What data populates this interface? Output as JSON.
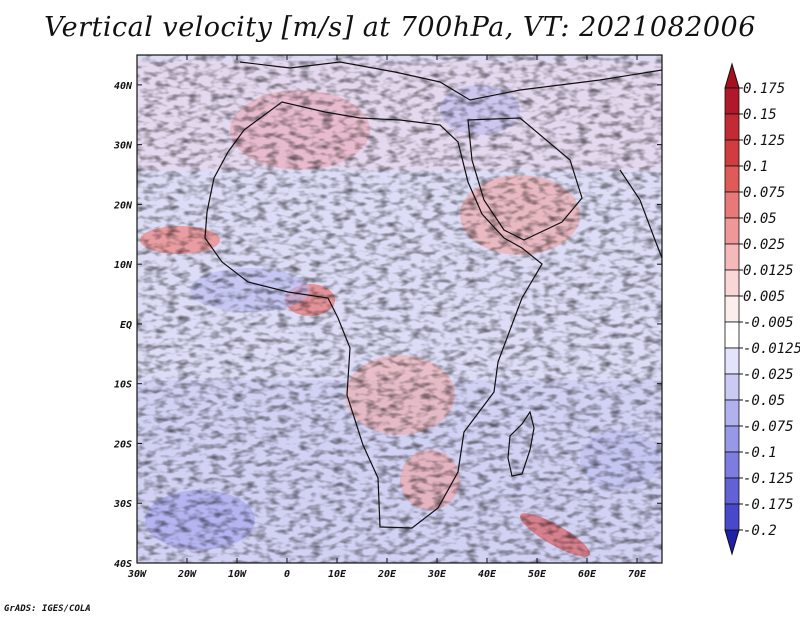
{
  "title": "Vertical velocity [m/s] at 700hPa, VT: 2021082006",
  "credit": "GrADS: IGES/COLA",
  "map": {
    "variable": "Vertical velocity",
    "units": "m/s",
    "level": "700hPa",
    "valid_time": "2021082006",
    "lon_range": [
      -30,
      75
    ],
    "lat_range": [
      -40,
      45
    ],
    "lat_ticks": [
      {
        "value": 40,
        "label": "40N"
      },
      {
        "value": 30,
        "label": "30N"
      },
      {
        "value": 20,
        "label": "20N"
      },
      {
        "value": 10,
        "label": "10N"
      },
      {
        "value": 0,
        "label": "EQ"
      },
      {
        "value": -10,
        "label": "10S"
      },
      {
        "value": -20,
        "label": "20S"
      },
      {
        "value": -30,
        "label": "30S"
      },
      {
        "value": -40,
        "label": "40S"
      }
    ],
    "lon_ticks": [
      {
        "value": -30,
        "label": "30W"
      },
      {
        "value": -20,
        "label": "20W"
      },
      {
        "value": -10,
        "label": "10W"
      },
      {
        "value": 0,
        "label": "0"
      },
      {
        "value": 10,
        "label": "10E"
      },
      {
        "value": 20,
        "label": "20E"
      },
      {
        "value": 30,
        "label": "30E"
      },
      {
        "value": 40,
        "label": "40E"
      },
      {
        "value": 50,
        "label": "50E"
      },
      {
        "value": 60,
        "label": "60E"
      },
      {
        "value": 70,
        "label": "70E"
      }
    ]
  },
  "colorbar": {
    "levels": [
      {
        "label": "0.175",
        "color": "#b2182b"
      },
      {
        "label": "0.15",
        "color": "#c32a34"
      },
      {
        "label": "0.125",
        "color": "#d33c3e"
      },
      {
        "label": "0.1",
        "color": "#e05a5a"
      },
      {
        "label": "0.075",
        "color": "#e97878"
      },
      {
        "label": "0.05",
        "color": "#f09898"
      },
      {
        "label": "0.025",
        "color": "#f6b9b9"
      },
      {
        "label": "0.0125",
        "color": "#fbd6d6"
      },
      {
        "label": "0.005",
        "color": "#fdeeee"
      },
      {
        "label": "-0.005",
        "color": "#ffffff"
      },
      {
        "label": "-0.0125",
        "color": "#e3e3fb"
      },
      {
        "label": "-0.025",
        "color": "#cacaf5"
      },
      {
        "label": "-0.05",
        "color": "#b1b1ef"
      },
      {
        "label": "-0.075",
        "color": "#9898e8"
      },
      {
        "label": "-0.1",
        "color": "#7d7de0"
      },
      {
        "label": "-0.125",
        "color": "#6262d6"
      },
      {
        "label": "-0.175",
        "color": "#4848cc"
      },
      {
        "label": "-0.2",
        "color": "#2e2ec0"
      }
    ],
    "top_arrow_color": "#a6111f",
    "bottom_arrow_color": "#1f1fa8"
  }
}
